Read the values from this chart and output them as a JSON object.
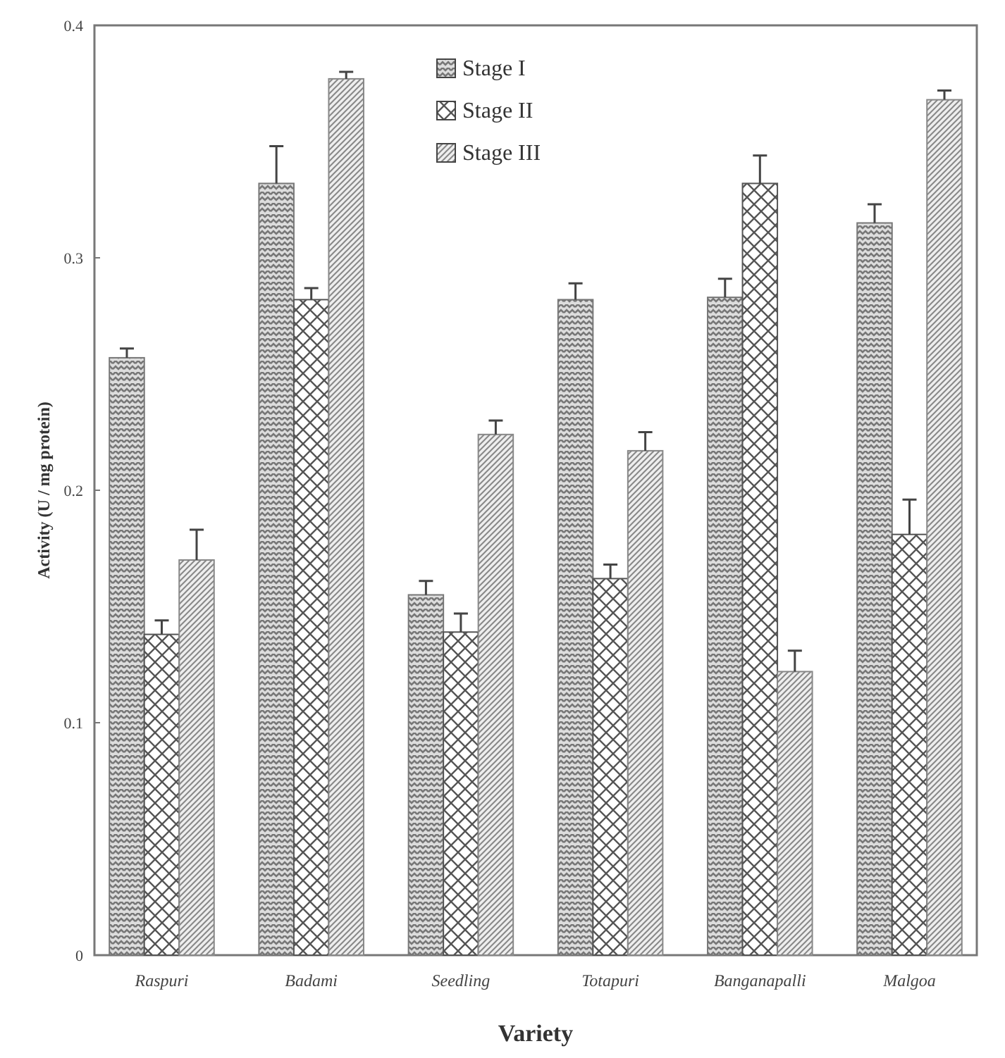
{
  "chart_data": {
    "type": "bar",
    "xlabel": "Variety",
    "ylabel": "Activity (U / mg protein)",
    "categories": [
      "Raspuri",
      "Badami",
      "Seedling",
      "Totapuri",
      "Banganapalli",
      "Malgoa"
    ],
    "series": [
      {
        "name": "Stage I",
        "color": "#777777",
        "values": [
          0.257,
          0.332,
          0.155,
          0.282,
          0.283,
          0.315
        ],
        "errors": [
          0.004,
          0.016,
          0.006,
          0.007,
          0.008,
          0.008
        ]
      },
      {
        "name": "Stage II",
        "color": "#555555",
        "values": [
          0.138,
          0.282,
          0.139,
          0.162,
          0.332,
          0.181
        ],
        "errors": [
          0.006,
          0.005,
          0.008,
          0.006,
          0.012,
          0.015
        ]
      },
      {
        "name": "Stage III",
        "color": "#888888",
        "values": [
          0.17,
          0.377,
          0.224,
          0.217,
          0.122,
          0.368
        ],
        "errors": [
          0.013,
          0.003,
          0.006,
          0.008,
          0.009,
          0.004
        ]
      }
    ],
    "ylim": [
      0,
      0.4
    ],
    "yticks": [
      0,
      0.1,
      0.2,
      0.3,
      0.4
    ],
    "legend": "top",
    "grid": false
  }
}
